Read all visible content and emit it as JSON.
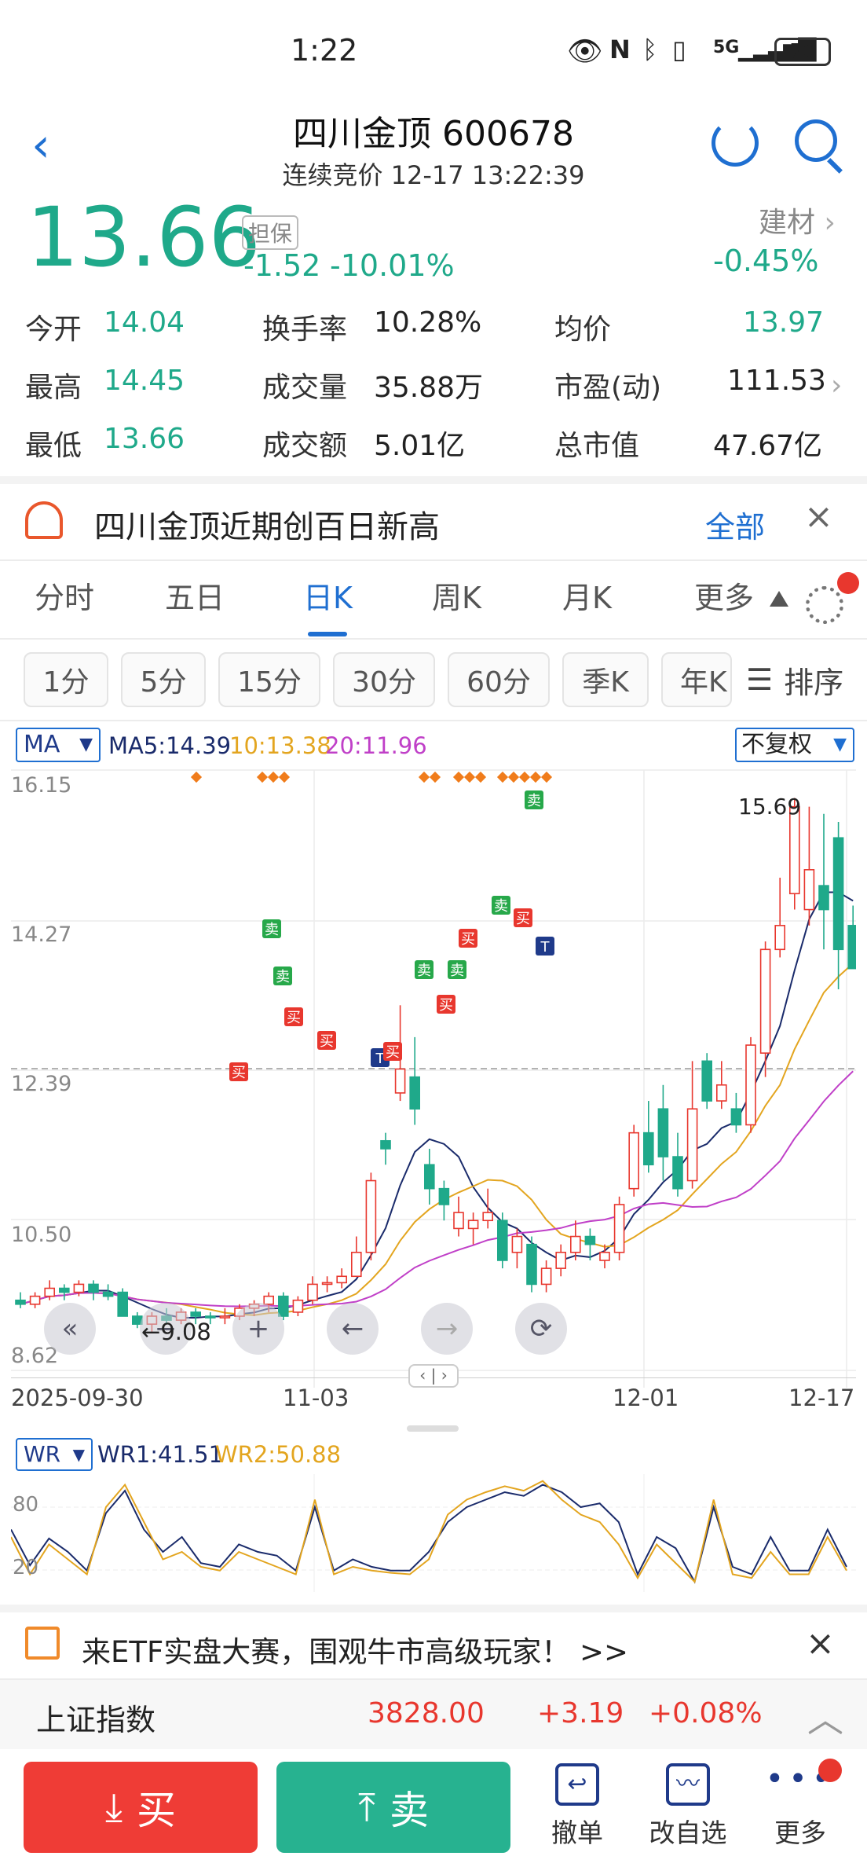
{
  "status_bar": {
    "time": "1:22",
    "network": "5G",
    "battery": "70"
  },
  "header": {
    "title": "四川金顶 600678",
    "subtitle": "连续竞价 12-17 13:22:39"
  },
  "quote": {
    "price": "13.66",
    "badge": "担保",
    "change": "-1.52",
    "change_pct": "-10.01%",
    "sector": "建材",
    "sector_pct": "-0.45%",
    "stats": [
      {
        "label": "今开",
        "value": "14.04"
      },
      {
        "label": "换手率",
        "value": "10.28%"
      },
      {
        "label": "均价",
        "value": "13.97"
      },
      {
        "label": "最高",
        "value": "14.45"
      },
      {
        "label": "成交量",
        "value": "35.88万"
      },
      {
        "label": "市盈(动)",
        "value": "111.53"
      },
      {
        "label": "最低",
        "value": "13.66"
      },
      {
        "label": "成交额",
        "value": "5.01亿"
      },
      {
        "label": "总市值",
        "value": "47.67亿"
      }
    ]
  },
  "notice": {
    "text": "四川金顶近期创百日新高",
    "link": "全部"
  },
  "chart_tabs": [
    "分时",
    "五日",
    "日K",
    "周K",
    "月K",
    "更多"
  ],
  "period_chips": [
    "1分",
    "5分",
    "15分",
    "30分",
    "60分",
    "季K",
    "年K"
  ],
  "sort_label": "排序",
  "indicator": {
    "ma_select": "MA",
    "ma5": "MA5:14.39",
    "ma10": "10:13.38",
    "ma20": "20:11.96",
    "adjust": "不复权",
    "y_labels": [
      "16.15",
      "14.27",
      "12.39",
      "10.50",
      "8.62"
    ],
    "x_labels": [
      "2025-09-30",
      "11-03",
      "12-01",
      "12-17"
    ],
    "high_label": "15.69",
    "low_label": "9.08",
    "sell_marker": "卖",
    "buy_marker": "买",
    "t_marker": "T"
  },
  "wr": {
    "select": "WR",
    "wr1": "WR1:41.51",
    "wr2": "WR2:50.88",
    "y_labels": [
      "80",
      "20"
    ]
  },
  "ad_banner": {
    "text": "来ETF实盘大赛，围观牛市高级玩家！ >>"
  },
  "index_bar": {
    "name": "上证指数",
    "value": "3828.00",
    "change": "+3.19",
    "pct": "+0.08%"
  },
  "bottom_bar": {
    "buy": "买",
    "sell": "卖",
    "cancel": "撤单",
    "edit_watch": "改自选",
    "more": "更多"
  },
  "colors": {
    "up": "#e8372e",
    "down": "#1fa98a",
    "accent": "#1f6fd1",
    "ma5": "#1a2b6b",
    "ma10": "#e3a51f",
    "ma20": "#c040c8"
  }
}
